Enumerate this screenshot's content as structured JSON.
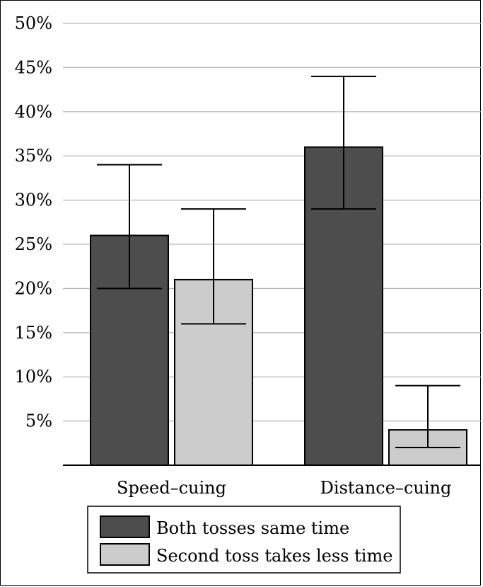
{
  "chart_data": {
    "type": "bar",
    "categories": [
      "Speed–cuing",
      "Distance–cuing"
    ],
    "series": [
      {
        "name": "Both tosses same time",
        "color": "#4d4d4d",
        "values": [
          26,
          36
        ],
        "error_low": [
          20,
          29
        ],
        "error_high": [
          34,
          44
        ]
      },
      {
        "name": "Second toss takes less time",
        "color": "#cccccc",
        "values": [
          21,
          4
        ],
        "error_low": [
          16,
          2
        ],
        "error_high": [
          29,
          9
        ]
      }
    ],
    "ylim": [
      0,
      50
    ],
    "yticks": [
      5,
      10,
      15,
      20,
      25,
      30,
      35,
      40,
      45,
      50
    ],
    "ytick_labels": [
      "5%",
      "10%",
      "15%",
      "20%",
      "25%",
      "30%",
      "35%",
      "40%",
      "45%",
      "50%"
    ],
    "grid": true,
    "legend_position": "bottom"
  }
}
